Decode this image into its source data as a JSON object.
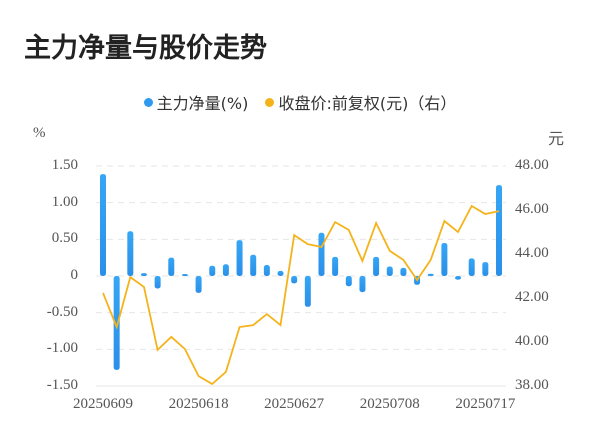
{
  "title": "主力净量与股价走势",
  "legend": [
    {
      "label": "主力净量(%)",
      "color": "#2e9bf0"
    },
    {
      "label": "收盘价:前复权(元)（右）",
      "color": "#f5b31b"
    }
  ],
  "axes": {
    "left_unit": "%",
    "right_unit": "元",
    "left_ticks": [
      "1.50",
      "1.00",
      "0.50",
      "0",
      "-0.50",
      "-1.00",
      "-1.50"
    ],
    "right_ticks": [
      "48.00",
      "46.00",
      "44.00",
      "42.00",
      "40.00",
      "38.00"
    ],
    "x_ticks": [
      "20250609",
      "20250618",
      "20250627",
      "20250708",
      "20250717"
    ]
  },
  "chart_data": {
    "type": "bar+line",
    "title": "主力净量与股价走势",
    "categories": [
      "20250609",
      "20250610",
      "20250611",
      "20250612",
      "20250613",
      "20250616",
      "20250617",
      "20250618",
      "20250619",
      "20250620",
      "20250623",
      "20250624",
      "20250625",
      "20250626",
      "20250627",
      "20250630",
      "20250701",
      "20250702",
      "20250703",
      "20250704",
      "20250707",
      "20250708",
      "20250709",
      "20250710",
      "20250711",
      "20250714",
      "20250715",
      "20250716",
      "20250717",
      "20250718"
    ],
    "series": [
      {
        "name": "主力净量(%)",
        "type": "bar",
        "axis": "left",
        "values": [
          1.39,
          -1.28,
          0.61,
          0.04,
          -0.17,
          0.25,
          0.01,
          -0.23,
          0.14,
          0.16,
          0.49,
          0.29,
          0.15,
          0.07,
          -0.1,
          -0.42,
          0.59,
          0.26,
          -0.14,
          -0.22,
          0.26,
          0.13,
          0.11,
          -0.12,
          0.03,
          0.45,
          -0.05,
          0.24,
          0.19,
          1.24
        ]
      },
      {
        "name": "收盘价:前复权(元)（右）",
        "type": "line",
        "axis": "right",
        "values": [
          42.23,
          40.68,
          42.95,
          42.5,
          39.64,
          40.23,
          39.68,
          38.45,
          38.09,
          38.64,
          40.68,
          40.77,
          41.27,
          40.77,
          44.86,
          44.45,
          44.32,
          45.45,
          45.09,
          43.68,
          45.41,
          44.14,
          43.73,
          42.82,
          43.73,
          45.5,
          45.0,
          46.18,
          45.82,
          45.95
        ]
      }
    ],
    "xlabel": "",
    "ylabel_left": "%",
    "ylabel_right": "元",
    "ylim_left": [
      -1.5,
      1.5
    ],
    "ylim_right": [
      38,
      48
    ],
    "x_tick_labels": [
      "20250609",
      "20250618",
      "20250627",
      "20250708",
      "20250717"
    ],
    "grid": true,
    "legend_position": "top"
  }
}
